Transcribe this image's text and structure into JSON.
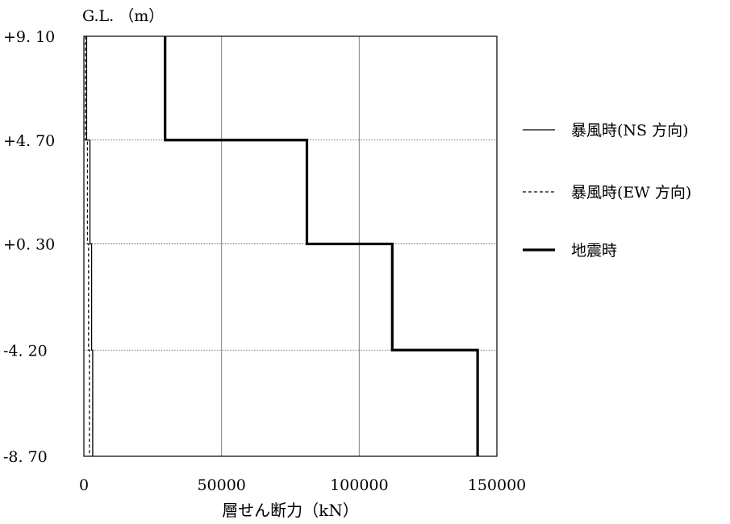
{
  "chart_data": {
    "type": "line",
    "ylabel": "G.L. （m）",
    "xlabel": "層せん断力（kN）",
    "xlim": [
      0,
      150000
    ],
    "ylim": [
      -8.7,
      9.1
    ],
    "xticks": [
      0,
      50000,
      100000,
      150000
    ],
    "xtick_labels": [
      "0",
      "50000",
      "100000",
      "150000"
    ],
    "yticks": [
      9.1,
      4.7,
      0.3,
      -4.2,
      -8.7
    ],
    "ytick_labels": [
      "+9. 10",
      "+4. 70",
      "+0. 30",
      "-4. 20",
      "-8. 70"
    ],
    "levels": [
      9.1,
      4.7,
      0.3,
      -4.2,
      -8.7
    ],
    "series": [
      {
        "name": "暴風時(NS 方向)",
        "style": "solid-thin",
        "values": [
          1000,
          2200,
          2800,
          3200
        ]
      },
      {
        "name": "暴風時(EW 方向)",
        "style": "dashed-thin",
        "values": [
          600,
          1300,
          1700,
          2000
        ]
      },
      {
        "name": "地震時",
        "style": "solid-thick",
        "values": [
          29500,
          81000,
          112000,
          143000
        ]
      }
    ],
    "legend_position": "right",
    "grid": {
      "vertical": "solid-gray",
      "horizontal": "dotted-at-levels"
    }
  }
}
